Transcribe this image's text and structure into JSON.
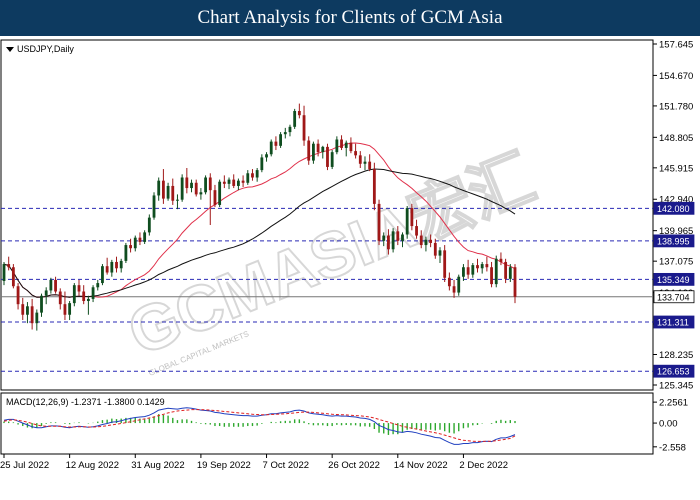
{
  "header": {
    "title": "Chart Analysis for Clients of GCM Asia"
  },
  "watermark": {
    "text": "GCMASIA宏汇",
    "subtext": "GLOBAL CAPITAL MARKETS"
  },
  "chart_data": {
    "type": "candlestick",
    "symbol_label": "USDJPY,Daily",
    "price_axis_ticks": [
      "157.645",
      "154.670",
      "151.780",
      "148.805",
      "145.915",
      "142.940",
      "139.965",
      "137.075",
      "134.100",
      "131.125",
      "128.235",
      "125.345"
    ],
    "x_tick_labels": [
      "25 Jul 2022",
      "12 Aug 2022",
      "31 Aug 2022",
      "19 Sep 2022",
      "7 Oct 2022",
      "26 Oct 2022",
      "14 Nov 2022",
      "2 Dec 2022"
    ],
    "levels": [
      {
        "value": 142.08,
        "label": "142.080",
        "style": "dashed"
      },
      {
        "value": 138.995,
        "label": "138.995",
        "style": "dashed"
      },
      {
        "value": 135.349,
        "label": "135.349",
        "style": "dashed"
      },
      {
        "value": 133.704,
        "label": "133.704",
        "style": "current"
      },
      {
        "value": 131.311,
        "label": "131.311",
        "style": "dashed"
      },
      {
        "value": 126.653,
        "label": "126.653",
        "style": "dashed"
      }
    ],
    "colors": {
      "up": "#0f4d1f",
      "down": "#a01818",
      "ma_fast": "#e0304a",
      "ma_slow": "#111111",
      "level": "#2a2ab5",
      "label_bg": "#1a1a8c",
      "macd": "#2040c0",
      "signal": "#e02020",
      "hist": "#2ea82e"
    },
    "candles": [
      [
        135.2,
        137.0,
        134.8,
        136.8
      ],
      [
        136.8,
        137.5,
        136.2,
        136.5
      ],
      [
        136.5,
        136.8,
        134.5,
        134.7
      ],
      [
        134.7,
        135.0,
        132.5,
        133.0
      ],
      [
        133.0,
        133.6,
        131.5,
        132.0
      ],
      [
        132.0,
        133.2,
        131.2,
        132.8
      ],
      [
        132.8,
        133.5,
        130.6,
        131.2
      ],
      [
        131.2,
        132.5,
        130.5,
        132.2
      ],
      [
        132.2,
        134.0,
        131.8,
        133.8
      ],
      [
        133.8,
        134.6,
        133.0,
        134.3
      ],
      [
        134.3,
        135.5,
        134.0,
        135.3
      ],
      [
        135.3,
        135.6,
        134.0,
        134.2
      ],
      [
        134.2,
        134.5,
        132.5,
        133.0
      ],
      [
        133.0,
        134.2,
        131.5,
        132.0
      ],
      [
        132.0,
        133.3,
        131.5,
        133.1
      ],
      [
        133.1,
        135.0,
        132.8,
        134.8
      ],
      [
        134.8,
        135.3,
        133.8,
        134.2
      ],
      [
        134.2,
        134.8,
        133.0,
        133.3
      ],
      [
        133.3,
        133.8,
        132.0,
        133.5
      ],
      [
        133.5,
        134.8,
        133.2,
        134.6
      ],
      [
        134.6,
        135.3,
        134.3,
        135.0
      ],
      [
        135.0,
        136.8,
        134.8,
        136.6
      ],
      [
        136.6,
        137.4,
        135.8,
        136.0
      ],
      [
        136.0,
        137.2,
        135.6,
        137.0
      ],
      [
        137.0,
        137.5,
        136.0,
        136.4
      ],
      [
        136.4,
        137.3,
        136.0,
        137.1
      ],
      [
        137.1,
        138.8,
        136.9,
        138.6
      ],
      [
        138.6,
        139.2,
        137.9,
        138.3
      ],
      [
        138.3,
        139.5,
        138.0,
        139.3
      ],
      [
        139.3,
        139.8,
        138.6,
        138.9
      ],
      [
        138.9,
        140.0,
        138.7,
        139.8
      ],
      [
        139.8,
        141.5,
        139.5,
        141.2
      ],
      [
        141.2,
        143.6,
        141.0,
        143.3
      ],
      [
        143.3,
        145.0,
        142.8,
        144.7
      ],
      [
        144.7,
        145.8,
        142.5,
        143.0
      ],
      [
        143.0,
        144.5,
        142.8,
        144.2
      ],
      [
        144.2,
        144.9,
        142.4,
        142.8
      ],
      [
        142.8,
        143.4,
        142.0,
        142.9
      ],
      [
        142.9,
        145.3,
        142.7,
        145.0
      ],
      [
        145.0,
        145.9,
        143.5,
        144.0
      ],
      [
        144.0,
        144.8,
        143.6,
        144.5
      ],
      [
        144.5,
        144.8,
        143.2,
        143.4
      ],
      [
        143.4,
        144.0,
        142.9,
        143.6
      ],
      [
        143.6,
        145.2,
        143.4,
        145.0
      ],
      [
        145.0,
        145.4,
        140.5,
        143.8
      ],
      [
        143.8,
        144.3,
        142.2,
        142.4
      ],
      [
        142.4,
        144.8,
        142.2,
        144.6
      ],
      [
        144.6,
        145.2,
        144.0,
        144.4
      ],
      [
        144.4,
        145.0,
        143.9,
        144.8
      ],
      [
        144.8,
        145.3,
        144.0,
        144.2
      ],
      [
        144.2,
        144.9,
        143.8,
        144.7
      ],
      [
        144.7,
        145.2,
        144.1,
        144.5
      ],
      [
        144.5,
        145.7,
        144.3,
        145.4
      ],
      [
        145.4,
        145.8,
        144.7,
        145.0
      ],
      [
        145.0,
        145.9,
        144.6,
        145.7
      ],
      [
        145.7,
        147.2,
        145.5,
        146.9
      ],
      [
        146.9,
        147.4,
        146.5,
        147.2
      ],
      [
        147.2,
        148.6,
        147.0,
        148.4
      ],
      [
        148.4,
        148.9,
        147.6,
        148.0
      ],
      [
        148.0,
        149.3,
        147.8,
        149.1
      ],
      [
        149.1,
        149.7,
        148.7,
        149.3
      ],
      [
        149.3,
        150.0,
        148.9,
        149.8
      ],
      [
        149.8,
        151.5,
        149.6,
        151.3
      ],
      [
        151.3,
        152.0,
        150.6,
        150.9
      ],
      [
        150.9,
        151.8,
        148.0,
        148.5
      ],
      [
        148.5,
        148.9,
        146.2,
        146.6
      ],
      [
        146.6,
        148.4,
        146.3,
        148.2
      ],
      [
        148.2,
        148.6,
        147.0,
        147.4
      ],
      [
        147.4,
        148.0,
        146.8,
        147.9
      ],
      [
        147.9,
        148.2,
        145.7,
        146.0
      ],
      [
        146.0,
        147.6,
        145.8,
        147.4
      ],
      [
        147.4,
        148.9,
        147.2,
        148.6
      ],
      [
        148.6,
        149.0,
        147.6,
        147.8
      ],
      [
        147.8,
        148.5,
        147.0,
        148.3
      ],
      [
        148.3,
        148.8,
        147.3,
        147.5
      ],
      [
        147.5,
        148.2,
        146.8,
        147.1
      ],
      [
        147.1,
        147.5,
        145.9,
        146.3
      ],
      [
        146.3,
        147.0,
        145.7,
        146.5
      ],
      [
        146.5,
        147.2,
        145.6,
        145.8
      ],
      [
        145.8,
        146.4,
        141.9,
        142.5
      ],
      [
        142.5,
        142.9,
        138.6,
        139.0
      ],
      [
        139.0,
        139.8,
        138.5,
        139.5
      ],
      [
        139.5,
        140.1,
        137.7,
        138.2
      ],
      [
        138.2,
        140.2,
        137.9,
        139.9
      ],
      [
        139.9,
        140.4,
        138.6,
        139.0
      ],
      [
        139.0,
        139.8,
        138.4,
        139.6
      ],
      [
        139.6,
        142.3,
        139.2,
        142.1
      ],
      [
        142.1,
        142.5,
        140.0,
        140.4
      ],
      [
        140.4,
        141.0,
        139.2,
        139.5
      ],
      [
        139.5,
        140.0,
        138.3,
        138.6
      ],
      [
        138.6,
        139.4,
        138.0,
        139.1
      ],
      [
        139.1,
        139.6,
        138.4,
        138.8
      ],
      [
        138.8,
        139.2,
        137.3,
        137.6
      ],
      [
        137.6,
        138.4,
        136.9,
        138.1
      ],
      [
        138.1,
        138.6,
        135.1,
        135.5
      ],
      [
        135.5,
        136.0,
        134.3,
        134.7
      ],
      [
        134.7,
        135.3,
        133.6,
        134.1
      ],
      [
        134.1,
        135.8,
        133.8,
        135.6
      ],
      [
        135.6,
        136.8,
        135.2,
        136.5
      ],
      [
        136.5,
        137.2,
        135.4,
        135.8
      ],
      [
        135.8,
        136.9,
        135.5,
        136.7
      ],
      [
        136.7,
        137.3,
        136.0,
        136.4
      ],
      [
        136.4,
        137.0,
        135.9,
        136.8
      ],
      [
        136.8,
        137.5,
        136.1,
        136.5
      ],
      [
        136.5,
        137.0,
        134.6,
        134.9
      ],
      [
        134.9,
        137.6,
        134.6,
        137.3
      ],
      [
        137.3,
        137.9,
        136.7,
        137.0
      ],
      [
        137.0,
        137.3,
        135.0,
        135.4
      ],
      [
        135.4,
        136.8,
        135.1,
        136.5
      ],
      [
        136.5,
        136.8,
        133.1,
        133.7
      ]
    ],
    "macd": {
      "label": "MACD(12,26,9) -1.2371 -1.3800 0.1429",
      "axis_ticks": [
        "2.2561",
        "0.00",
        "-2.558"
      ],
      "ylim": [
        -2.9,
        2.7
      ],
      "macd": [
        0.3,
        0.4,
        0.4,
        0.2,
        0.0,
        -0.2,
        -0.4,
        -0.5,
        -0.5,
        -0.4,
        -0.3,
        -0.3,
        -0.35,
        -0.45,
        -0.5,
        -0.4,
        -0.35,
        -0.4,
        -0.45,
        -0.4,
        -0.3,
        -0.15,
        -0.05,
        0.1,
        0.15,
        0.25,
        0.4,
        0.5,
        0.6,
        0.65,
        0.7,
        0.85,
        1.1,
        1.4,
        1.5,
        1.6,
        1.55,
        1.5,
        1.6,
        1.65,
        1.6,
        1.5,
        1.4,
        1.35,
        1.3,
        1.15,
        1.1,
        1.0,
        0.95,
        0.9,
        0.85,
        0.8,
        0.8,
        0.75,
        0.75,
        0.85,
        0.9,
        1.0,
        1.0,
        1.1,
        1.15,
        1.2,
        1.35,
        1.4,
        1.3,
        1.1,
        1.0,
        0.95,
        0.9,
        0.8,
        0.75,
        0.8,
        0.75,
        0.75,
        0.7,
        0.65,
        0.55,
        0.5,
        0.4,
        0.15,
        -0.25,
        -0.45,
        -0.7,
        -0.8,
        -0.95,
        -1.0,
        -0.9,
        -0.95,
        -1.05,
        -1.2,
        -1.3,
        -1.4,
        -1.55,
        -1.6,
        -1.85,
        -2.1,
        -2.3,
        -2.3,
        -2.2,
        -2.2,
        -2.1,
        -2.1,
        -2.0,
        -1.95,
        -2.0,
        -1.75,
        -1.6,
        -1.6,
        -1.45,
        -1.24
      ],
      "signal": [
        0.2,
        0.3,
        0.35,
        0.3,
        0.2,
        0.1,
        -0.05,
        -0.2,
        -0.3,
        -0.35,
        -0.35,
        -0.35,
        -0.35,
        -0.4,
        -0.42,
        -0.42,
        -0.4,
        -0.4,
        -0.42,
        -0.42,
        -0.4,
        -0.35,
        -0.28,
        -0.2,
        -0.12,
        -0.05,
        0.05,
        0.15,
        0.25,
        0.35,
        0.45,
        0.55,
        0.65,
        0.8,
        0.95,
        1.1,
        1.2,
        1.3,
        1.35,
        1.4,
        1.45,
        1.45,
        1.45,
        1.43,
        1.4,
        1.35,
        1.3,
        1.25,
        1.2,
        1.15,
        1.1,
        1.05,
        1.0,
        0.95,
        0.92,
        0.9,
        0.9,
        0.92,
        0.95,
        0.98,
        1.0,
        1.05,
        1.1,
        1.15,
        1.18,
        1.18,
        1.15,
        1.1,
        1.05,
        1.0,
        0.95,
        0.92,
        0.9,
        0.88,
        0.85,
        0.8,
        0.78,
        0.72,
        0.65,
        0.55,
        0.4,
        0.25,
        0.1,
        -0.05,
        -0.2,
        -0.35,
        -0.45,
        -0.55,
        -0.65,
        -0.75,
        -0.85,
        -0.95,
        -1.05,
        -1.15,
        -1.3,
        -1.45,
        -1.6,
        -1.75,
        -1.85,
        -1.9,
        -1.95,
        -1.97,
        -1.97,
        -1.95,
        -1.95,
        -1.9,
        -1.82,
        -1.75,
        -1.65,
        -1.38
      ]
    }
  }
}
